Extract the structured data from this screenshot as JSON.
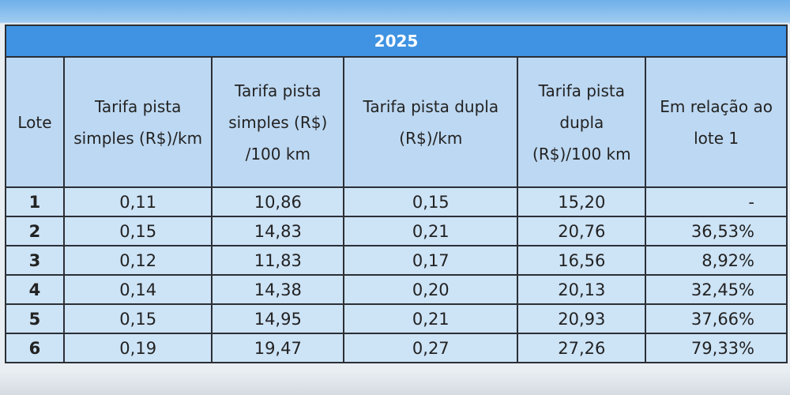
{
  "table": {
    "title": "2025",
    "headers": [
      "Lote",
      "Tarifa pista simples (R$)/km",
      "Tarifa pista simples (R$) /100 km",
      "Tarifa pista dupla (R$)/km",
      "Tarifa pista dupla (R$)/100 km",
      "Em relação ao lote 1"
    ],
    "rows": [
      [
        "1",
        "0,11",
        "10,86",
        "0,15",
        "15,20",
        "-"
      ],
      [
        "2",
        "0,15",
        "14,83",
        "0,21",
        "20,76",
        "36,53%"
      ],
      [
        "3",
        "0,12",
        "11,83",
        "0,17",
        "16,56",
        "8,92%"
      ],
      [
        "4",
        "0,14",
        "14,38",
        "0,20",
        "20,13",
        "32,45%"
      ],
      [
        "5",
        "0,15",
        "14,95",
        "0,21",
        "20,93",
        "37,66%"
      ],
      [
        "6",
        "0,19",
        "19,47",
        "0,27",
        "27,26",
        "79,33%"
      ]
    ]
  }
}
